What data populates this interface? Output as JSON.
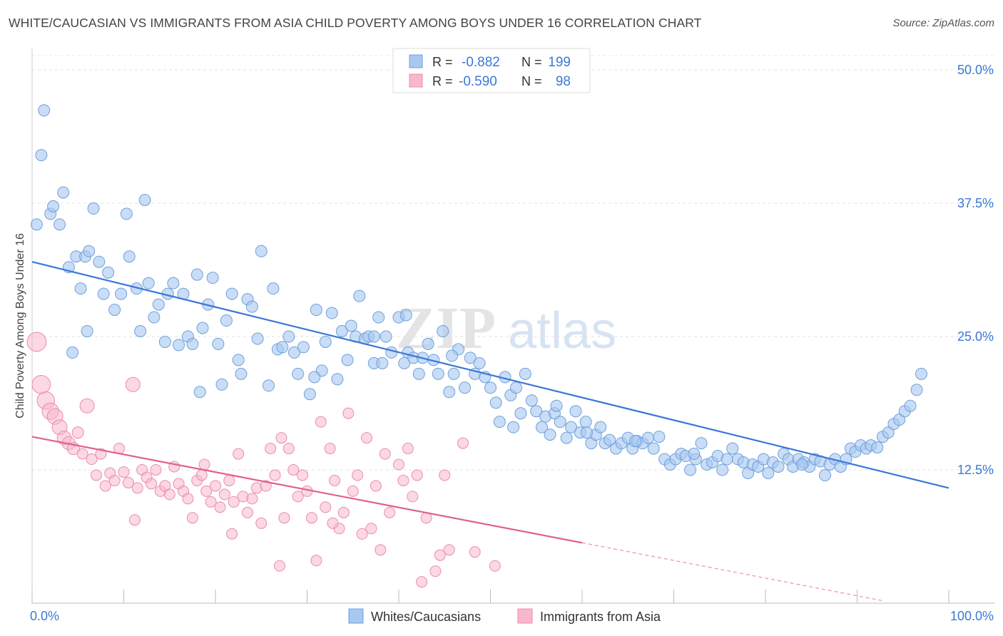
{
  "chart_data": {
    "type": "scatter",
    "title": "WHITE/CAUCASIAN VS IMMIGRANTS FROM ASIA CHILD POVERTY AMONG BOYS UNDER 16 CORRELATION CHART",
    "source": "Source: ZipAtlas.com",
    "watermark": [
      "ZIP",
      "atlas"
    ],
    "xlabel": "",
    "ylabel": "Child Poverty Among Boys Under 16",
    "xlim": [
      0,
      100
    ],
    "ylim": [
      0,
      52
    ],
    "x_tick_labels": [
      "0.0%",
      "100.0%"
    ],
    "y_ticks": [
      12.5,
      25.0,
      37.5,
      50.0
    ],
    "y_tick_labels": [
      "12.5%",
      "25.0%",
      "37.5%",
      "50.0%"
    ],
    "grid": true,
    "legend_stats": [
      {
        "r_label": "R = ",
        "r": "-0.882",
        "n_label": "N = ",
        "n": "199",
        "color": "#a8c8f0"
      },
      {
        "r_label": "R = ",
        "r": "-0.590",
        "n_label": "N = ",
        "n": "98",
        "color": "#f8b8cc"
      }
    ],
    "series": [
      {
        "name": "Whites/Caucasians",
        "color": "#a8c8f0",
        "edge": "#6fa0dc",
        "line_color": "#3a78d6",
        "trend": {
          "x0": 0,
          "y0": 32.0,
          "x1": 100,
          "y1": 10.8,
          "solid_until": 100
        },
        "points": [
          [
            0.5,
            35.5
          ],
          [
            1.3,
            46.2
          ],
          [
            1,
            42
          ],
          [
            2,
            36.5
          ],
          [
            2.3,
            37.2
          ],
          [
            3,
            35.5
          ],
          [
            3.4,
            38.5
          ],
          [
            4,
            31.5
          ],
          [
            4.4,
            23.5
          ],
          [
            4.8,
            32.5
          ],
          [
            5.3,
            29.5
          ],
          [
            5.8,
            32.5
          ],
          [
            6,
            25.5
          ],
          [
            6.7,
            37
          ],
          [
            7.3,
            32
          ],
          [
            7.8,
            29
          ],
          [
            8.3,
            31
          ],
          [
            9,
            27.5
          ],
          [
            9.7,
            29
          ],
          [
            10.3,
            36.5
          ],
          [
            10.6,
            32.5
          ],
          [
            11.4,
            29.5
          ],
          [
            11.8,
            25.5
          ],
          [
            12.3,
            37.8
          ],
          [
            12.7,
            30
          ],
          [
            13.3,
            26.8
          ],
          [
            13.8,
            28
          ],
          [
            14.5,
            24.5
          ],
          [
            14.8,
            29
          ],
          [
            15.4,
            30
          ],
          [
            16,
            24.2
          ],
          [
            16.5,
            29
          ],
          [
            17,
            25
          ],
          [
            17.5,
            24.3
          ],
          [
            18,
            30.8
          ],
          [
            18.6,
            25.8
          ],
          [
            19.2,
            28
          ],
          [
            19.7,
            30.5
          ],
          [
            20.3,
            24.3
          ],
          [
            20.7,
            20.5
          ],
          [
            21.2,
            26.5
          ],
          [
            21.8,
            29
          ],
          [
            22.5,
            22.8
          ],
          [
            22.8,
            21.5
          ],
          [
            23.5,
            28.5
          ],
          [
            24,
            27.8
          ],
          [
            24.6,
            24.8
          ],
          [
            25,
            33
          ],
          [
            25.8,
            20.4
          ],
          [
            26.3,
            29.5
          ],
          [
            26.8,
            23.8
          ],
          [
            27.3,
            24
          ],
          [
            28,
            25
          ],
          [
            28.6,
            23.5
          ],
          [
            29,
            21.5
          ],
          [
            29.6,
            24
          ],
          [
            30.3,
            19.6
          ],
          [
            31,
            27.5
          ],
          [
            31.6,
            21.8
          ],
          [
            32,
            24.5
          ],
          [
            32.7,
            27.2
          ],
          [
            33.3,
            21
          ],
          [
            33.8,
            25.5
          ],
          [
            34.4,
            22.8
          ],
          [
            34.8,
            26
          ],
          [
            35.3,
            25
          ],
          [
            35.7,
            28.8
          ],
          [
            36.3,
            24.8
          ],
          [
            36.7,
            25
          ],
          [
            37.3,
            22.5
          ],
          [
            37.8,
            26.8
          ],
          [
            38.2,
            22.5
          ],
          [
            38.6,
            25
          ],
          [
            39.2,
            23.5
          ],
          [
            40,
            26.8
          ],
          [
            40.6,
            22.5
          ],
          [
            41,
            23.5
          ],
          [
            41.6,
            23
          ],
          [
            42.2,
            21.5
          ],
          [
            42.6,
            23
          ],
          [
            43.2,
            24.3
          ],
          [
            43.8,
            22.8
          ],
          [
            44.3,
            21.5
          ],
          [
            44.8,
            25.5
          ],
          [
            45.5,
            19.8
          ],
          [
            46,
            21.5
          ],
          [
            46.5,
            23.8
          ],
          [
            47.2,
            20.2
          ],
          [
            47.8,
            23
          ],
          [
            48.3,
            21.5
          ],
          [
            48.8,
            22.5
          ],
          [
            49.4,
            21.2
          ],
          [
            50,
            20.2
          ],
          [
            50.6,
            18.8
          ],
          [
            51,
            17
          ],
          [
            51.6,
            21.2
          ],
          [
            52.2,
            19.5
          ],
          [
            52.8,
            20.2
          ],
          [
            53.3,
            17.8
          ],
          [
            53.8,
            21.5
          ],
          [
            54.5,
            19
          ],
          [
            55,
            18
          ],
          [
            55.6,
            16.5
          ],
          [
            56,
            17.5
          ],
          [
            56.5,
            15.8
          ],
          [
            57,
            17.8
          ],
          [
            57.6,
            17
          ],
          [
            58.3,
            15.5
          ],
          [
            58.8,
            16.5
          ],
          [
            59.3,
            18
          ],
          [
            59.8,
            16
          ],
          [
            60.4,
            17
          ],
          [
            61,
            15
          ],
          [
            61.5,
            15.8
          ],
          [
            62,
            16.5
          ],
          [
            62.5,
            15
          ],
          [
            63,
            15.3
          ],
          [
            63.7,
            14.5
          ],
          [
            64.3,
            15
          ],
          [
            65,
            15.5
          ],
          [
            65.5,
            14.5
          ],
          [
            66,
            15.2
          ],
          [
            66.6,
            15
          ],
          [
            67.2,
            15.5
          ],
          [
            67.8,
            14.5
          ],
          [
            68.4,
            15.6
          ],
          [
            69,
            13.5
          ],
          [
            69.6,
            13
          ],
          [
            70.2,
            13.5
          ],
          [
            70.8,
            14
          ],
          [
            71.3,
            13.8
          ],
          [
            71.8,
            12.5
          ],
          [
            72.4,
            13.5
          ],
          [
            73,
            15
          ],
          [
            73.6,
            13
          ],
          [
            74.2,
            13.2
          ],
          [
            74.8,
            13.8
          ],
          [
            75.3,
            12.5
          ],
          [
            75.8,
            13.5
          ],
          [
            76.4,
            14.5
          ],
          [
            77,
            13.5
          ],
          [
            77.6,
            13.2
          ],
          [
            78.1,
            12.2
          ],
          [
            78.6,
            13
          ],
          [
            79.2,
            12.8
          ],
          [
            79.8,
            13.5
          ],
          [
            80.3,
            12.2
          ],
          [
            80.8,
            13.2
          ],
          [
            81.4,
            12.8
          ],
          [
            82,
            14
          ],
          [
            82.5,
            13.5
          ],
          [
            83,
            12.8
          ],
          [
            83.6,
            13.5
          ],
          [
            84.2,
            13.2
          ],
          [
            84.8,
            12.8
          ],
          [
            85.4,
            13.5
          ],
          [
            86,
            13.3
          ],
          [
            86.5,
            12
          ],
          [
            87,
            13
          ],
          [
            87.6,
            13.5
          ],
          [
            88.2,
            12.8
          ],
          [
            88.8,
            13.5
          ],
          [
            89.3,
            14.5
          ],
          [
            89.8,
            14.2
          ],
          [
            90.4,
            14.8
          ],
          [
            91,
            14.5
          ],
          [
            91.5,
            14.8
          ],
          [
            92.2,
            14.6
          ],
          [
            92.8,
            15.6
          ],
          [
            93.4,
            16
          ],
          [
            94,
            16.8
          ],
          [
            94.6,
            17.2
          ],
          [
            95.2,
            18
          ],
          [
            95.8,
            18.5
          ],
          [
            96.5,
            20
          ],
          [
            97,
            21.5
          ],
          [
            37.3,
            25
          ],
          [
            40.8,
            27
          ],
          [
            57.2,
            18.5
          ],
          [
            65.8,
            15.2
          ],
          [
            72.2,
            14
          ],
          [
            84,
            13
          ],
          [
            6.2,
            33
          ],
          [
            18.3,
            19.8
          ],
          [
            30.8,
            21.2
          ],
          [
            60.5,
            16
          ],
          [
            45.8,
            23.2
          ],
          [
            52.5,
            16.5
          ]
        ]
      },
      {
        "name": "Immigrants from Asia",
        "color": "#f8b8cc",
        "edge": "#eb8ca8",
        "line_color": "#e06090",
        "trend": {
          "x0": 0,
          "y0": 15.6,
          "x1": 93,
          "y1": 0.2,
          "solid_until": 60
        },
        "points": [
          [
            0.5,
            24.5
          ],
          [
            1,
            20.5
          ],
          [
            1.5,
            19
          ],
          [
            2,
            18
          ],
          [
            2.5,
            17.5
          ],
          [
            3,
            16.5
          ],
          [
            3.5,
            15.5
          ],
          [
            4,
            15
          ],
          [
            4.5,
            14.5
          ],
          [
            5,
            16
          ],
          [
            5.5,
            14
          ],
          [
            6,
            18.5
          ],
          [
            6.5,
            13.5
          ],
          [
            7,
            12
          ],
          [
            7.5,
            14
          ],
          [
            8,
            11
          ],
          [
            8.5,
            12.2
          ],
          [
            9,
            11.5
          ],
          [
            9.5,
            14.5
          ],
          [
            10,
            12.3
          ],
          [
            10.5,
            11.3
          ],
          [
            11,
            20.5
          ],
          [
            11.5,
            10.8
          ],
          [
            12,
            12.5
          ],
          [
            12.5,
            11.8
          ],
          [
            13,
            11.2
          ],
          [
            13.5,
            12.5
          ],
          [
            14,
            10.5
          ],
          [
            14.5,
            11
          ],
          [
            15,
            10.2
          ],
          [
            15.5,
            12.8
          ],
          [
            16,
            11.2
          ],
          [
            16.5,
            10.5
          ],
          [
            17,
            9.8
          ],
          [
            17.5,
            8
          ],
          [
            18,
            11.5
          ],
          [
            18.5,
            12
          ],
          [
            19,
            10.5
          ],
          [
            19.5,
            9.5
          ],
          [
            20,
            11
          ],
          [
            20.5,
            9
          ],
          [
            21,
            10.2
          ],
          [
            21.5,
            11.5
          ],
          [
            22,
            9.5
          ],
          [
            22.5,
            14
          ],
          [
            23,
            10
          ],
          [
            23.5,
            8.5
          ],
          [
            24,
            9.8
          ],
          [
            24.5,
            10.8
          ],
          [
            25,
            7.5
          ],
          [
            25.5,
            11
          ],
          [
            26,
            14.5
          ],
          [
            26.5,
            12
          ],
          [
            27,
            3.5
          ],
          [
            27.5,
            8
          ],
          [
            28,
            14.5
          ],
          [
            28.5,
            12.5
          ],
          [
            29,
            10
          ],
          [
            29.5,
            12
          ],
          [
            30,
            10.5
          ],
          [
            30.5,
            8
          ],
          [
            31,
            4
          ],
          [
            31.5,
            17
          ],
          [
            32,
            9
          ],
          [
            32.5,
            14.5
          ],
          [
            33,
            11.5
          ],
          [
            33.5,
            7
          ],
          [
            34,
            8.5
          ],
          [
            34.5,
            17.8
          ],
          [
            35,
            10.5
          ],
          [
            35.5,
            12
          ],
          [
            36,
            6.5
          ],
          [
            36.5,
            15.5
          ],
          [
            37,
            7
          ],
          [
            37.5,
            11
          ],
          [
            38,
            5
          ],
          [
            38.5,
            14
          ],
          [
            39,
            8.5
          ],
          [
            40,
            13
          ],
          [
            40.5,
            11.5
          ],
          [
            41,
            14.5
          ],
          [
            41.5,
            10
          ],
          [
            42,
            12
          ],
          [
            42.5,
            2
          ],
          [
            43,
            8
          ],
          [
            44,
            3
          ],
          [
            44.5,
            4.5
          ],
          [
            45,
            12
          ],
          [
            45.5,
            5
          ],
          [
            47,
            15
          ],
          [
            48.3,
            4.8
          ],
          [
            50.5,
            3.5
          ],
          [
            27.2,
            15.5
          ],
          [
            32.8,
            7.5
          ],
          [
            21.8,
            6.5
          ],
          [
            18.8,
            13
          ],
          [
            11.2,
            7.8
          ]
        ]
      }
    ]
  }
}
